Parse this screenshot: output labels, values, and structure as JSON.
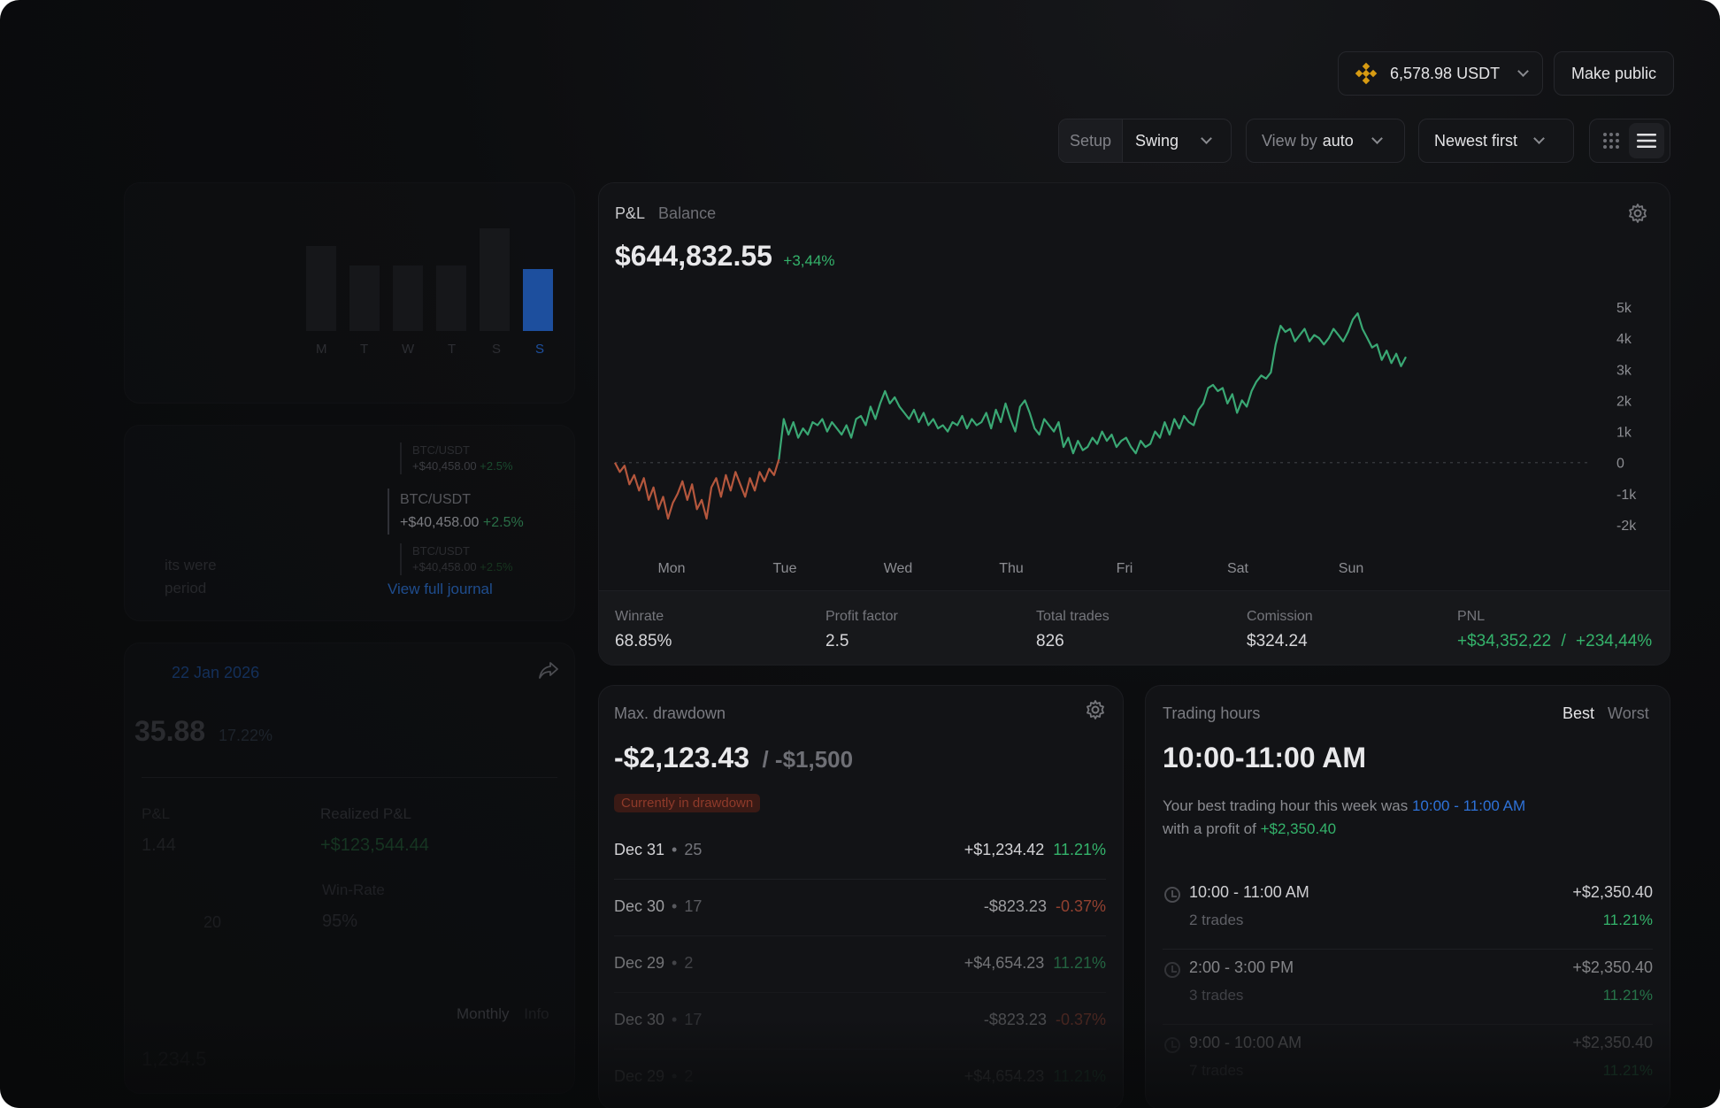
{
  "header": {
    "balance": "6,578.98 USDT",
    "make_public": "Make public"
  },
  "filters": {
    "setup_label": "Setup",
    "setup_value": "Swing",
    "view_prefix": "View by",
    "view_value": "auto",
    "sort": "Newest first"
  },
  "left": {
    "weekday_labels": [
      "M",
      "T",
      "W",
      "T",
      "S",
      "S"
    ],
    "journal": {
      "entries": [
        {
          "pair": "BTC/USDT",
          "value": "+$40,458.00",
          "pct": "+2.5%"
        },
        {
          "pair": "BTC/USDT",
          "value": "+$40,458.00",
          "pct": "+2.5%"
        },
        {
          "pair": "BTC/USDT",
          "value": "+$40,458.00",
          "pct": "+2.5%"
        }
      ],
      "faded_text_1": "its were",
      "faded_text_2": "period",
      "view_link": "View full journal"
    },
    "summary": {
      "date": "22 Jan 2026",
      "amount": "35.88",
      "pct": "17.22%",
      "realized_label": "Realized P&L",
      "realized_value": "+$123,544.44",
      "winrate_label": "Win-Rate",
      "winrate_value": "95%",
      "left_label": "P&L",
      "left_value": "1.44",
      "left_date": "20",
      "tabs": [
        "Monthly",
        "Info"
      ],
      "bottom_value": "1,234.5"
    }
  },
  "pnl_chart": {
    "tabs": [
      "P&L",
      "Balance"
    ],
    "total": "$644,832.55",
    "change": "+3,44%",
    "stats": [
      {
        "label": "Winrate",
        "value": "68.85%"
      },
      {
        "label": "Profit factor",
        "value": "2.5"
      },
      {
        "label": "Total trades",
        "value": "826"
      },
      {
        "label": "Comission",
        "value": "$324.24"
      }
    ],
    "pnl_label": "PNL",
    "pnl_value": "+$34,352,22",
    "pnl_sep": "/",
    "pnl_pct": "+234,44%"
  },
  "chart_data": {
    "type": "line",
    "title": "",
    "x_ticks": [
      "Mon",
      "Tue",
      "Wed",
      "Thu",
      "Fri",
      "Sat",
      "Sun"
    ],
    "y_ticks": [
      "5k",
      "4k",
      "3k",
      "2k",
      "1k",
      "0",
      "-1k",
      "-2k"
    ],
    "ylim": [
      -2000,
      5000
    ],
    "grid": false,
    "baseline": 0,
    "positive_color": "#3aa874",
    "negative_color": "#b5573d",
    "series": [
      {
        "values": [
          0,
          -300,
          -100,
          -700,
          -400,
          -900,
          -500,
          -1200,
          -800,
          -1500,
          -1100,
          -1800,
          -1300,
          -1000,
          -600,
          -1200,
          -700,
          -1500,
          -1200,
          -1800,
          -800,
          -500,
          -1100,
          -400,
          -900,
          -300,
          -700,
          -1100,
          -500,
          -900,
          -300,
          -600,
          -200,
          -400,
          100,
          1400,
          900,
          1300,
          800,
          1100,
          900,
          1300,
          1200,
          1400,
          1000,
          1300,
          1100,
          900,
          1200,
          800,
          1400,
          1500,
          1200,
          1800,
          1400,
          1900,
          2300,
          1900,
          2100,
          1800,
          1600,
          1400,
          1700,
          1300,
          1600,
          1200,
          1400,
          1100,
          1200,
          1000,
          1300,
          1200,
          1500,
          1100,
          1400,
          1200,
          1300,
          1600,
          1100,
          1700,
          1300,
          1900,
          1400,
          1000,
          1800,
          2000,
          1600,
          1100,
          900,
          1400,
          1200,
          1000,
          1300,
          500,
          800,
          300,
          700,
          400,
          500,
          800,
          600,
          1000,
          700,
          900,
          500,
          700,
          800,
          500,
          300,
          700,
          500,
          600,
          1000,
          800,
          1300,
          900,
          1400,
          1100,
          1500,
          1300,
          1200,
          1700,
          1900,
          2400,
          2500,
          2300,
          2400,
          1900,
          2200,
          1600,
          2000,
          1800,
          2300,
          2600,
          2800,
          2700,
          2900,
          3800,
          4400,
          4200,
          4300,
          3900,
          4100,
          4300,
          3900,
          4100,
          4000,
          3800,
          4000,
          4300,
          4100,
          3900,
          4200,
          4600,
          4800,
          4300,
          4000,
          3700,
          3800,
          3300,
          3600,
          3200,
          3500,
          3100,
          3400
        ]
      }
    ]
  },
  "drawdown": {
    "title": "Max. drawdown",
    "amount": "-$2,123.43",
    "limit": "/ -$1,500",
    "badge": "Currently in drawdown",
    "rows": [
      {
        "date": "Dec 31",
        "count": "25",
        "value": "+$1,234.42",
        "pct": "11.21%",
        "positive": true
      },
      {
        "date": "Dec 30",
        "count": "17",
        "value": "-$823.23",
        "pct": "-0.37%",
        "positive": false
      },
      {
        "date": "Dec 29",
        "count": "2",
        "value": "+$4,654.23",
        "pct": "11.21%",
        "positive": true
      },
      {
        "date": "Dec 30",
        "count": "17",
        "value": "-$823.23",
        "pct": "-0.37%",
        "positive": false
      },
      {
        "date": "Dec 29",
        "count": "2",
        "value": "+$4,654.23",
        "pct": "11.21%",
        "positive": true
      }
    ]
  },
  "hours": {
    "title": "Trading hours",
    "tabs": [
      "Best",
      "Worst"
    ],
    "best": "10:00-11:00 AM",
    "desc_1": "Your best trading hour this week was",
    "desc_1_highlight": "10:00 - 11:00 AM",
    "desc_2": "with a profit of",
    "desc_2_highlight": "+$2,350.40",
    "rows": [
      {
        "time": "10:00 - 11:00 AM",
        "trades": "2 trades",
        "value": "+$2,350.40",
        "pct": "11.21%"
      },
      {
        "time": "2:00 - 3:00 PM",
        "trades": "3 trades",
        "value": "+$2,350.40",
        "pct": "11.21%"
      },
      {
        "time": "9:00 - 10:00 AM",
        "trades": "7 trades",
        "value": "+$2,350.40",
        "pct": "11.21%"
      }
    ]
  }
}
